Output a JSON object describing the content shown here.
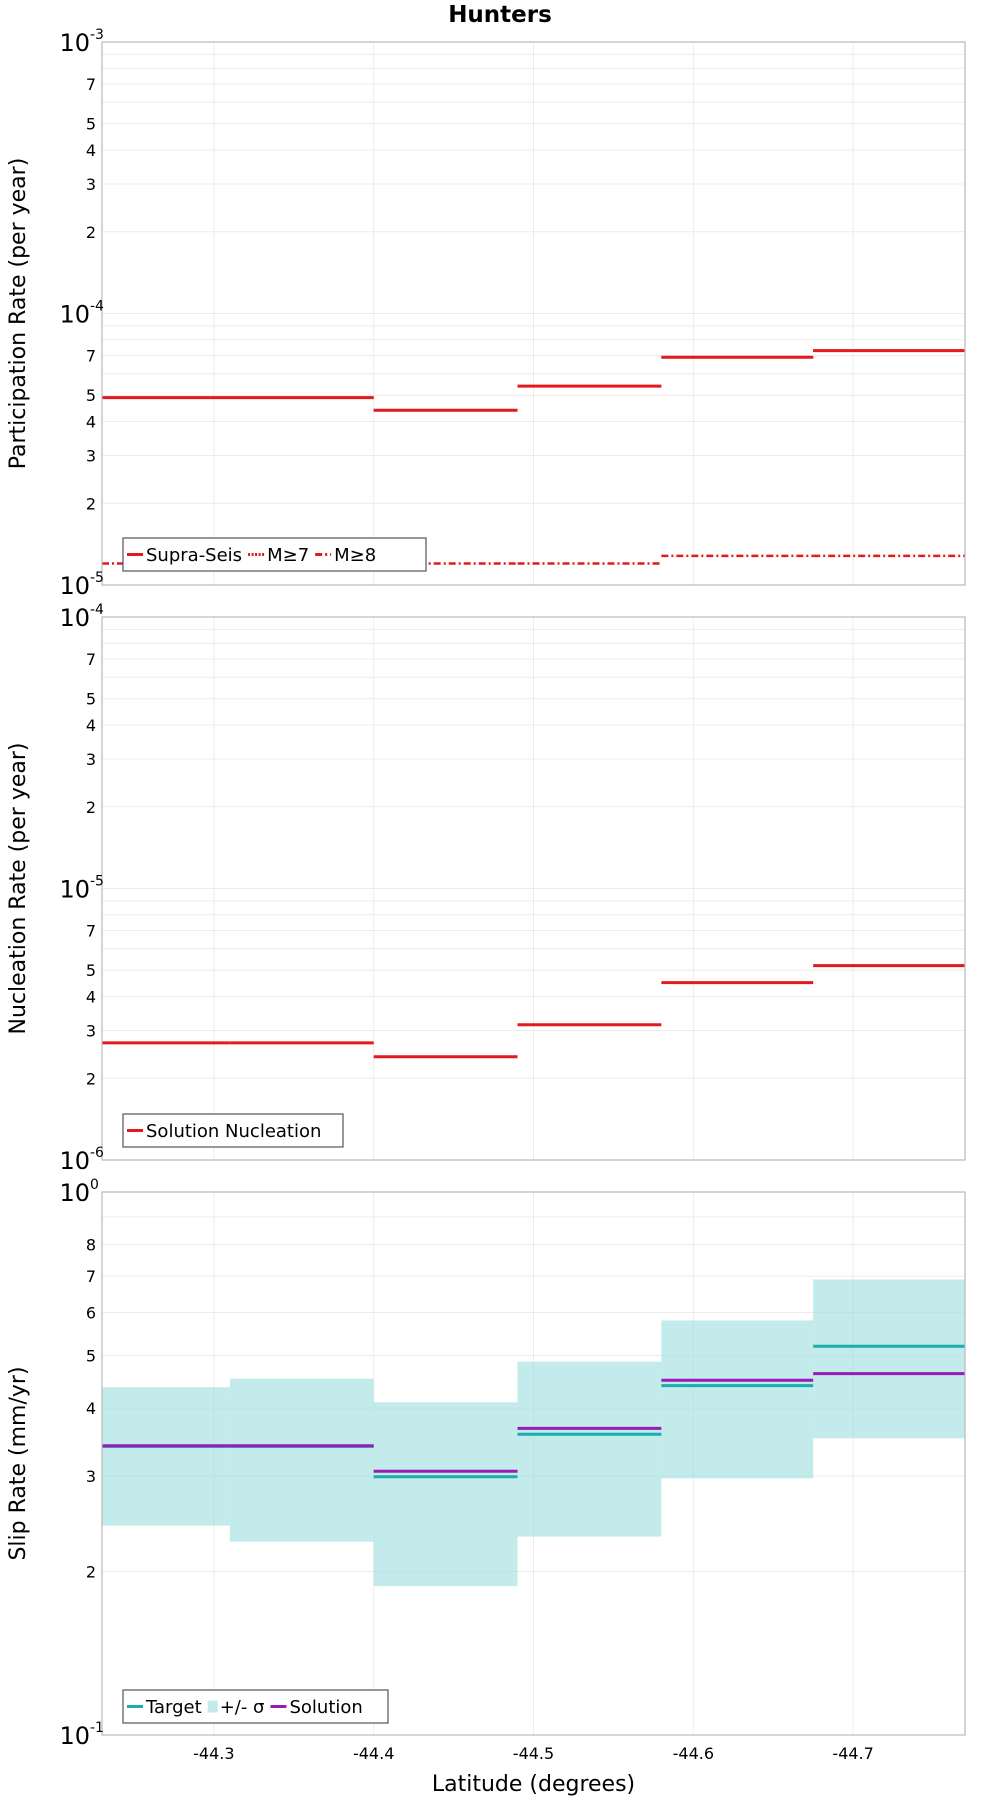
{
  "chart_data": [
    {
      "type": "line",
      "title": "Hunters",
      "ylabel": "Participation Rate (per year)",
      "xlabel": "",
      "y_scale": "log",
      "ylim": [
        1e-05,
        0.001
      ],
      "xlim": [
        -44.23,
        -44.77
      ],
      "x_reversed": true,
      "grid": true,
      "legend_position": "bottom-left",
      "series": [
        {
          "name": "Supra-Seis",
          "color": "#e31a1c",
          "style": "solid",
          "segments": [
            {
              "x0": -44.23,
              "x1": -44.31,
              "y": 4.9e-05
            },
            {
              "x0": -44.31,
              "x1": -44.4,
              "y": 4.9e-05
            },
            {
              "x0": -44.4,
              "x1": -44.49,
              "y": 4.4e-05
            },
            {
              "x0": -44.49,
              "x1": -44.58,
              "y": 5.4e-05
            },
            {
              "x0": -44.58,
              "x1": -44.675,
              "y": 6.9e-05
            },
            {
              "x0": -44.675,
              "x1": -44.77,
              "y": 7.3e-05
            }
          ]
        },
        {
          "name": "M≥7",
          "color": "#e31a1c",
          "style": "dotted",
          "segments": [
            {
              "x0": -44.23,
              "x1": -44.31,
              "y": 4.9e-05
            },
            {
              "x0": -44.31,
              "x1": -44.4,
              "y": 4.9e-05
            },
            {
              "x0": -44.4,
              "x1": -44.49,
              "y": 4.4e-05
            },
            {
              "x0": -44.49,
              "x1": -44.58,
              "y": 5.4e-05
            },
            {
              "x0": -44.58,
              "x1": -44.675,
              "y": 6.9e-05
            },
            {
              "x0": -44.675,
              "x1": -44.77,
              "y": 7.3e-05
            }
          ]
        },
        {
          "name": "M≥8",
          "color": "#e31a1c",
          "style": "dashdot",
          "segments": [
            {
              "x0": -44.23,
              "x1": -44.31,
              "y": 1.2e-05
            },
            {
              "x0": -44.31,
              "x1": -44.4,
              "y": 1.2e-05
            },
            {
              "x0": -44.4,
              "x1": -44.49,
              "y": 1.2e-05
            },
            {
              "x0": -44.49,
              "x1": -44.58,
              "y": 1.2e-05
            },
            {
              "x0": -44.58,
              "x1": -44.675,
              "y": 1.28e-05
            },
            {
              "x0": -44.675,
              "x1": -44.77,
              "y": 1.28e-05
            }
          ]
        }
      ],
      "y_ticks": [
        {
          "value": 1e-05,
          "mantissa": "10",
          "exponent": "-5",
          "major": true
        },
        {
          "value": 2e-05,
          "label": "2"
        },
        {
          "value": 3e-05,
          "label": "3"
        },
        {
          "value": 4e-05,
          "label": "4"
        },
        {
          "value": 5e-05,
          "label": "5"
        },
        {
          "value": 7e-05,
          "label": "7"
        },
        {
          "value": 0.0001,
          "mantissa": "10",
          "exponent": "-4",
          "major": true
        },
        {
          "value": 0.0002,
          "label": "2"
        },
        {
          "value": 0.0003,
          "label": "3"
        },
        {
          "value": 0.0004,
          "label": "4"
        },
        {
          "value": 0.0005,
          "label": "5"
        },
        {
          "value": 0.0007,
          "label": "7"
        },
        {
          "value": 0.001,
          "mantissa": "10",
          "exponent": "-3",
          "major": true
        }
      ]
    },
    {
      "type": "line",
      "title": "",
      "ylabel": "Nucleation Rate (per year)",
      "xlabel": "",
      "y_scale": "log",
      "ylim": [
        1e-06,
        0.0001
      ],
      "xlim": [
        -44.23,
        -44.77
      ],
      "x_reversed": true,
      "grid": true,
      "legend_position": "bottom-left",
      "series": [
        {
          "name": "Solution Nucleation",
          "color": "#e31a1c",
          "style": "solid",
          "segments": [
            {
              "x0": -44.23,
              "x1": -44.31,
              "y": 2.7e-06
            },
            {
              "x0": -44.31,
              "x1": -44.4,
              "y": 2.7e-06
            },
            {
              "x0": -44.4,
              "x1": -44.49,
              "y": 2.4e-06
            },
            {
              "x0": -44.49,
              "x1": -44.58,
              "y": 3.15e-06
            },
            {
              "x0": -44.58,
              "x1": -44.675,
              "y": 4.5e-06
            },
            {
              "x0": -44.675,
              "x1": -44.77,
              "y": 5.2e-06
            }
          ]
        }
      ],
      "y_ticks": [
        {
          "value": 1e-06,
          "mantissa": "10",
          "exponent": "-6",
          "major": true
        },
        {
          "value": 2e-06,
          "label": "2"
        },
        {
          "value": 3e-06,
          "label": "3"
        },
        {
          "value": 4e-06,
          "label": "4"
        },
        {
          "value": 5e-06,
          "label": "5"
        },
        {
          "value": 7e-06,
          "label": "7"
        },
        {
          "value": 1e-05,
          "mantissa": "10",
          "exponent": "-5",
          "major": true
        },
        {
          "value": 2e-05,
          "label": "2"
        },
        {
          "value": 3e-05,
          "label": "3"
        },
        {
          "value": 4e-05,
          "label": "4"
        },
        {
          "value": 5e-05,
          "label": "5"
        },
        {
          "value": 7e-05,
          "label": "7"
        },
        {
          "value": 0.0001,
          "mantissa": "10",
          "exponent": "-4",
          "major": true
        }
      ]
    },
    {
      "type": "line",
      "title": "",
      "ylabel": "Slip Rate (mm/yr)",
      "xlabel": "Latitude (degrees)",
      "y_scale": "log",
      "ylim": [
        0.1,
        1
      ],
      "xlim": [
        -44.23,
        -44.77
      ],
      "x_reversed": true,
      "grid": true,
      "legend_position": "bottom-left",
      "band": {
        "name": "+/- σ",
        "color": "#9edede",
        "segments": [
          {
            "x0": -44.23,
            "x1": -44.31,
            "low": 0.243,
            "high": 0.437
          },
          {
            "x0": -44.31,
            "x1": -44.4,
            "low": 0.227,
            "high": 0.453
          },
          {
            "x0": -44.4,
            "x1": -44.49,
            "low": 0.188,
            "high": 0.41
          },
          {
            "x0": -44.49,
            "x1": -44.58,
            "low": 0.232,
            "high": 0.487
          },
          {
            "x0": -44.58,
            "x1": -44.675,
            "low": 0.297,
            "high": 0.58
          },
          {
            "x0": -44.675,
            "x1": -44.77,
            "low": 0.352,
            "high": 0.69
          }
        ]
      },
      "series": [
        {
          "name": "Target",
          "color": "#1aadad",
          "style": "solid",
          "segments": [
            {
              "x0": -44.23,
              "x1": -44.31,
              "y": 0.34
            },
            {
              "x0": -44.31,
              "x1": -44.4,
              "y": 0.34
            },
            {
              "x0": -44.4,
              "x1": -44.49,
              "y": 0.299
            },
            {
              "x0": -44.49,
              "x1": -44.58,
              "y": 0.358
            },
            {
              "x0": -44.58,
              "x1": -44.675,
              "y": 0.44
            },
            {
              "x0": -44.675,
              "x1": -44.77,
              "y": 0.52
            }
          ]
        },
        {
          "name": "Solution",
          "color": "#9a1ab5",
          "style": "solid",
          "segments": [
            {
              "x0": -44.23,
              "x1": -44.31,
              "y": 0.341
            },
            {
              "x0": -44.31,
              "x1": -44.4,
              "y": 0.341
            },
            {
              "x0": -44.4,
              "x1": -44.49,
              "y": 0.306
            },
            {
              "x0": -44.49,
              "x1": -44.58,
              "y": 0.367
            },
            {
              "x0": -44.58,
              "x1": -44.675,
              "y": 0.45
            },
            {
              "x0": -44.675,
              "x1": -44.77,
              "y": 0.463
            }
          ]
        }
      ],
      "y_ticks": [
        {
          "value": 0.1,
          "mantissa": "10",
          "exponent": "-1",
          "major": true
        },
        {
          "value": 0.2,
          "label": "2"
        },
        {
          "value": 0.3,
          "label": "3"
        },
        {
          "value": 0.4,
          "label": "4"
        },
        {
          "value": 0.5,
          "label": "5"
        },
        {
          "value": 0.6,
          "label": "6"
        },
        {
          "value": 0.7,
          "label": "7"
        },
        {
          "value": 0.8,
          "label": "8"
        },
        {
          "value": 1,
          "mantissa": "10",
          "exponent": "0",
          "major": true
        }
      ]
    }
  ],
  "x_ticks": [
    {
      "value": -44.3,
      "label": "-44.3"
    },
    {
      "value": -44.4,
      "label": "-44.4"
    },
    {
      "value": -44.5,
      "label": "-44.5"
    },
    {
      "value": -44.6,
      "label": "-44.6"
    },
    {
      "value": -44.7,
      "label": "-44.7"
    }
  ]
}
